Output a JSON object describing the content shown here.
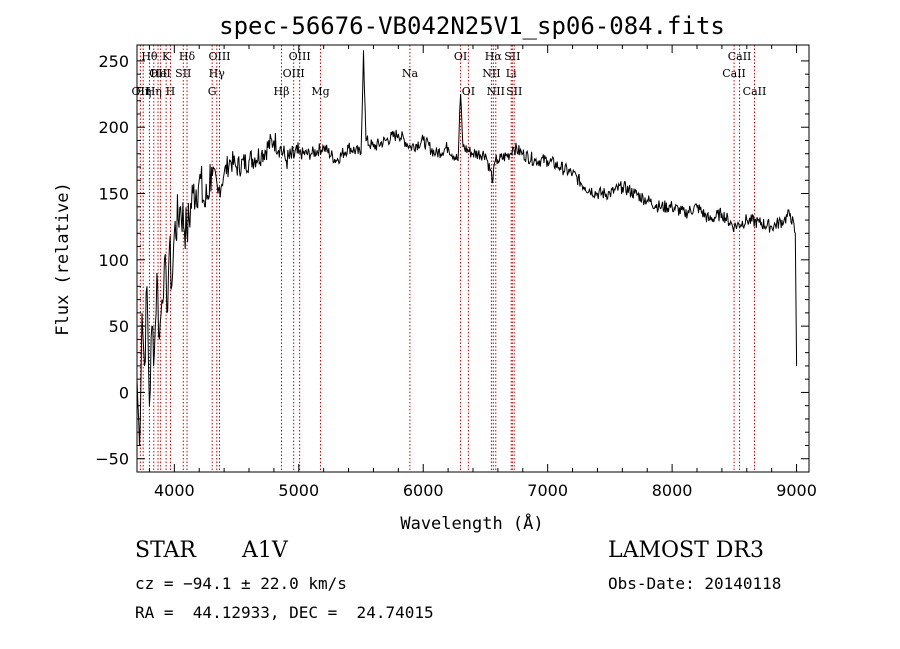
{
  "chart_data": {
    "type": "line",
    "title": "spec-56676-VB042N25V1_sp06-084.fits",
    "xlabel": "Wavelength (Å)",
    "ylabel": "Flux (relative)",
    "xlim": [
      3700,
      9100
    ],
    "ylim": [
      -60,
      262
    ],
    "xticks": [
      4000,
      5000,
      6000,
      7000,
      8000,
      9000
    ],
    "yticks": [
      -50,
      0,
      50,
      100,
      150,
      200,
      250
    ],
    "grid": false,
    "line_color": "#000000",
    "marker_color": "#cc0000",
    "series": [
      {
        "x": [
          3700,
          3720,
          3740,
          3760,
          3780,
          3800,
          3820,
          3840,
          3860,
          3880,
          3900,
          3920,
          3940,
          3960,
          3980,
          4000,
          4050,
          4100,
          4150,
          4200,
          4250,
          4300,
          4350,
          4400,
          4450,
          4500,
          4600,
          4700,
          4800,
          4850,
          4900,
          5000,
          5100,
          5200,
          5300,
          5400,
          5500,
          5520,
          5540,
          5600,
          5700,
          5800,
          5900,
          6000,
          6100,
          6200,
          6280,
          6300,
          6320,
          6400,
          6500,
          6560,
          6580,
          6600,
          6700,
          6720,
          6800,
          6900,
          7000,
          7100,
          7200,
          7300,
          7400,
          7500,
          7600,
          7700,
          7800,
          7900,
          8000,
          8100,
          8200,
          8300,
          8400,
          8500,
          8600,
          8700,
          8800,
          8900,
          8950,
          8990,
          9000
        ],
        "y": [
          10,
          -40,
          60,
          20,
          80,
          -10,
          50,
          30,
          90,
          40,
          70,
          100,
          60,
          110,
          80,
          120,
          140,
          120,
          150,
          160,
          140,
          170,
          150,
          165,
          175,
          170,
          175,
          180,
          190,
          185,
          175,
          180,
          180,
          185,
          175,
          185,
          180,
          258,
          190,
          185,
          190,
          195,
          185,
          190,
          180,
          185,
          175,
          225,
          185,
          180,
          180,
          160,
          175,
          175,
          180,
          185,
          180,
          175,
          175,
          170,
          165,
          155,
          150,
          150,
          155,
          150,
          145,
          140,
          140,
          135,
          140,
          130,
          135,
          125,
          130,
          128,
          125,
          130,
          135,
          120,
          20
        ]
      }
    ],
    "line_markers": [
      {
        "x": 3727,
        "label": "OII",
        "row": 2
      },
      {
        "x": 3750,
        "label": "Hη",
        "row": 2
      },
      {
        "x": 3800,
        "label": "Hθ",
        "row": 0
      },
      {
        "x": 3835,
        "label": "Hη",
        "row": 2
      },
      {
        "x": 3869,
        "label": "OII",
        "row": 1
      },
      {
        "x": 3890,
        "label": "HeI",
        "row": 1
      },
      {
        "x": 3934,
        "label": "K",
        "row": 0
      },
      {
        "x": 3969,
        "label": "H",
        "row": 2
      },
      {
        "x": 4072,
        "label": "SII",
        "row": 1
      },
      {
        "x": 4102,
        "label": "Hδ",
        "row": 0
      },
      {
        "x": 4304,
        "label": "G",
        "row": 2
      },
      {
        "x": 4341,
        "label": "Hγ",
        "row": 1
      },
      {
        "x": 4363,
        "label": "OIII",
        "row": 0
      },
      {
        "x": 4861,
        "label": "Hβ",
        "row": 2
      },
      {
        "x": 4959,
        "label": "OIII",
        "row": 1
      },
      {
        "x": 5007,
        "label": "OIII",
        "row": 0
      },
      {
        "x": 5175,
        "label": "Mg",
        "row": 2
      },
      {
        "x": 5893,
        "label": "Na",
        "row": 1
      },
      {
        "x": 6300,
        "label": "OI",
        "row": 0
      },
      {
        "x": 6363,
        "label": "OI",
        "row": 2
      },
      {
        "x": 6548,
        "label": "NII",
        "row": 1
      },
      {
        "x": 6563,
        "label": "Hα",
        "row": 0
      },
      {
        "x": 6583,
        "label": "NII",
        "row": 2
      },
      {
        "x": 6707,
        "label": "Li",
        "row": 1
      },
      {
        "x": 6716,
        "label": "SII",
        "row": 0
      },
      {
        "x": 6731,
        "label": "SII",
        "row": 2
      },
      {
        "x": 8498,
        "label": "CaII",
        "row": 1
      },
      {
        "x": 8542,
        "label": "CaII",
        "row": 0
      },
      {
        "x": 8662,
        "label": "CaII",
        "row": 2
      }
    ]
  },
  "info": {
    "class_label": "STAR",
    "subclass": "A1V",
    "survey": "LAMOST DR3",
    "cz": "cz = −94.1 ± 22.0 km/s",
    "obs_date": "Obs-Date: 20140118",
    "coords": "RA =  44.12933, DEC =  24.74015"
  }
}
